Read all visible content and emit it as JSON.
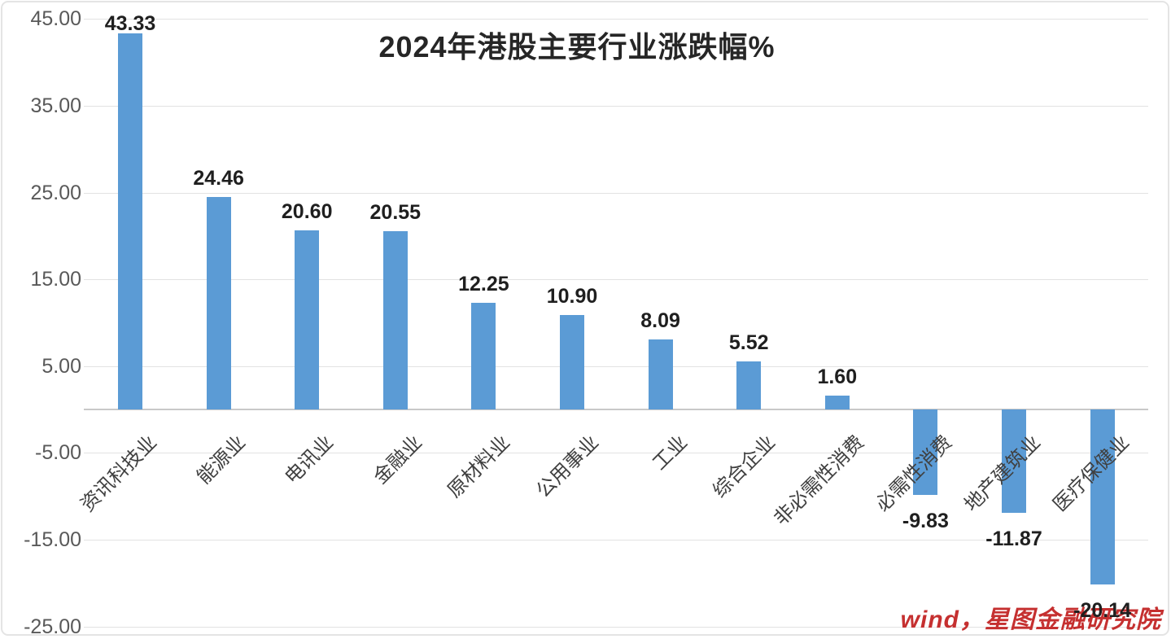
{
  "title": "2024年港股主要行业涨跌幅%",
  "watermark": "wind，星图金融研究院",
  "chart_data": {
    "type": "bar",
    "title": "2024年港股主要行业涨跌幅%",
    "categories": [
      "资讯科技业",
      "能源业",
      "电讯业",
      "金融业",
      "原材料业",
      "公用事业",
      "工业",
      "综合企业",
      "非必需性消费",
      "必需性消费",
      "地产建筑业",
      "医疗保健业"
    ],
    "values": [
      43.33,
      24.46,
      20.6,
      20.55,
      12.25,
      10.9,
      8.09,
      5.52,
      1.6,
      -9.83,
      -11.87,
      -20.14
    ],
    "value_labels": [
      "43.33",
      "24.46",
      "20.60",
      "20.55",
      "12.25",
      "10.90",
      "8.09",
      "5.52",
      "1.60",
      "-9.83",
      "-11.87",
      "-20.14"
    ],
    "y_ticks": [
      45,
      35,
      25,
      15,
      5,
      -5,
      -15,
      -25
    ],
    "y_tick_labels": [
      "45.00",
      "35.00",
      "25.00",
      "15.00",
      "5.00",
      "-5.00",
      "-15.00",
      "-25.00"
    ],
    "ylim": [
      -25,
      45
    ],
    "xlabel": "",
    "ylabel": "",
    "grid": true,
    "legend": "none",
    "bar_color": "#5B9BD5",
    "source_note": "wind，星图金融研究院"
  },
  "colors": {
    "bar": "#5B9BD5",
    "gridline": "#e2e2e2",
    "axis_line": "#c9c9c9",
    "axis_text": "#595959",
    "category_text": "#404040",
    "value_text": "#1f1f1f",
    "title_text": "#262626",
    "watermark_text": "#c53030",
    "frame": "#e4e4e4"
  }
}
